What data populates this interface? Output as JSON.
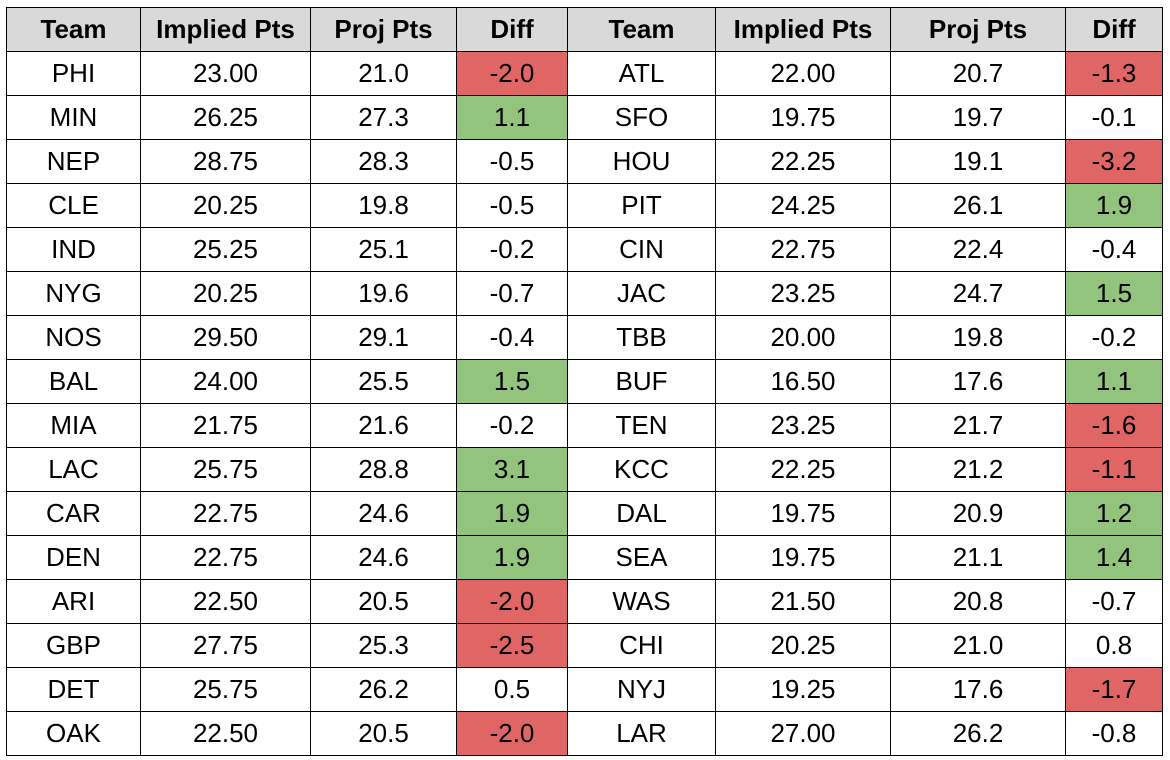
{
  "headers": [
    "Team",
    "Implied Pts",
    "Proj Pts",
    "Diff",
    "Team",
    "Implied Pts",
    "Proj Pts",
    "Diff"
  ],
  "colors": {
    "header_fill": "#d9d9d9",
    "positive_fill": "#93c47d",
    "negative_fill": "#e06666"
  },
  "rows": [
    [
      {
        "team": "PHI",
        "implied": "23.00",
        "proj": "21.0",
        "diff": "-2.0",
        "status": "neg"
      },
      {
        "team": "ATL",
        "implied": "22.00",
        "proj": "20.7",
        "diff": "-1.3",
        "status": "neg"
      }
    ],
    [
      {
        "team": "MIN",
        "implied": "26.25",
        "proj": "27.3",
        "diff": "1.1",
        "status": "pos"
      },
      {
        "team": "SFO",
        "implied": "19.75",
        "proj": "19.7",
        "diff": "-0.1",
        "status": ""
      }
    ],
    [
      {
        "team": "NEP",
        "implied": "28.75",
        "proj": "28.3",
        "diff": "-0.5",
        "status": ""
      },
      {
        "team": "HOU",
        "implied": "22.25",
        "proj": "19.1",
        "diff": "-3.2",
        "status": "neg"
      }
    ],
    [
      {
        "team": "CLE",
        "implied": "20.25",
        "proj": "19.8",
        "diff": "-0.5",
        "status": ""
      },
      {
        "team": "PIT",
        "implied": "24.25",
        "proj": "26.1",
        "diff": "1.9",
        "status": "pos"
      }
    ],
    [
      {
        "team": "IND",
        "implied": "25.25",
        "proj": "25.1",
        "diff": "-0.2",
        "status": ""
      },
      {
        "team": "CIN",
        "implied": "22.75",
        "proj": "22.4",
        "diff": "-0.4",
        "status": ""
      }
    ],
    [
      {
        "team": "NYG",
        "implied": "20.25",
        "proj": "19.6",
        "diff": "-0.7",
        "status": ""
      },
      {
        "team": "JAC",
        "implied": "23.25",
        "proj": "24.7",
        "diff": "1.5",
        "status": "pos"
      }
    ],
    [
      {
        "team": "NOS",
        "implied": "29.50",
        "proj": "29.1",
        "diff": "-0.4",
        "status": ""
      },
      {
        "team": "TBB",
        "implied": "20.00",
        "proj": "19.8",
        "diff": "-0.2",
        "status": ""
      }
    ],
    [
      {
        "team": "BAL",
        "implied": "24.00",
        "proj": "25.5",
        "diff": "1.5",
        "status": "pos"
      },
      {
        "team": "BUF",
        "implied": "16.50",
        "proj": "17.6",
        "diff": "1.1",
        "status": "pos"
      }
    ],
    [
      {
        "team": "MIA",
        "implied": "21.75",
        "proj": "21.6",
        "diff": "-0.2",
        "status": ""
      },
      {
        "team": "TEN",
        "implied": "23.25",
        "proj": "21.7",
        "diff": "-1.6",
        "status": "neg"
      }
    ],
    [
      {
        "team": "LAC",
        "implied": "25.75",
        "proj": "28.8",
        "diff": "3.1",
        "status": "pos"
      },
      {
        "team": "KCC",
        "implied": "22.25",
        "proj": "21.2",
        "diff": "-1.1",
        "status": "neg"
      }
    ],
    [
      {
        "team": "CAR",
        "implied": "22.75",
        "proj": "24.6",
        "diff": "1.9",
        "status": "pos"
      },
      {
        "team": "DAL",
        "implied": "19.75",
        "proj": "20.9",
        "diff": "1.2",
        "status": "pos"
      }
    ],
    [
      {
        "team": "DEN",
        "implied": "22.75",
        "proj": "24.6",
        "diff": "1.9",
        "status": "pos"
      },
      {
        "team": "SEA",
        "implied": "19.75",
        "proj": "21.1",
        "diff": "1.4",
        "status": "pos"
      }
    ],
    [
      {
        "team": "ARI",
        "implied": "22.50",
        "proj": "20.5",
        "diff": "-2.0",
        "status": "neg"
      },
      {
        "team": "WAS",
        "implied": "21.50",
        "proj": "20.8",
        "diff": "-0.7",
        "status": ""
      }
    ],
    [
      {
        "team": "GBP",
        "implied": "27.75",
        "proj": "25.3",
        "diff": "-2.5",
        "status": "neg"
      },
      {
        "team": "CHI",
        "implied": "20.25",
        "proj": "21.0",
        "diff": "0.8",
        "status": ""
      }
    ],
    [
      {
        "team": "DET",
        "implied": "25.75",
        "proj": "26.2",
        "diff": "0.5",
        "status": ""
      },
      {
        "team": "NYJ",
        "implied": "19.25",
        "proj": "17.6",
        "diff": "-1.7",
        "status": "neg"
      }
    ],
    [
      {
        "team": "OAK",
        "implied": "22.50",
        "proj": "20.5",
        "diff": "-2.0",
        "status": "neg"
      },
      {
        "team": "LAR",
        "implied": "27.00",
        "proj": "26.2",
        "diff": "-0.8",
        "status": ""
      }
    ]
  ]
}
